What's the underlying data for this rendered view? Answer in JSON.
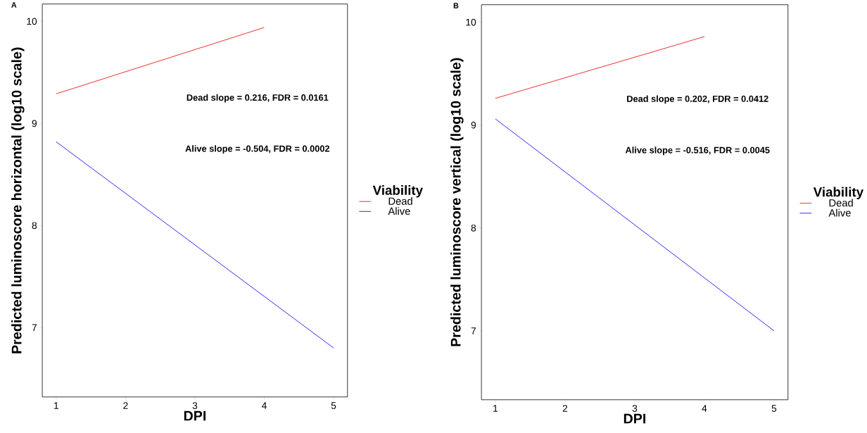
{
  "chart_data": [
    {
      "type": "line",
      "title": "A",
      "xlabel": "DPI",
      "ylabel": "Predicted luminoscore horizontal (log10 scale)",
      "legend_title": "Viability",
      "legend": "right",
      "line_style": "solid",
      "marker": "none",
      "xlim": [
        0.8,
        5.2
      ],
      "ylim": [
        6.32,
        10.17
      ],
      "xticks": [
        1,
        2,
        3,
        4,
        5
      ],
      "yticks": [
        7,
        8,
        9,
        10
      ],
      "series": [
        {
          "name": "Dead",
          "color": "#ee2c2c",
          "x": [
            1,
            4
          ],
          "values": [
            9.29,
            9.94
          ]
        },
        {
          "name": "Alive",
          "color": "#2c2cee",
          "x": [
            1,
            5
          ],
          "values": [
            8.82,
            6.8
          ]
        }
      ],
      "annotations": [
        "Dead slope = 0.216, FDR = 0.0161",
        "Alive slope = -0.504, FDR = 0.0002"
      ]
    },
    {
      "type": "line",
      "title": "B",
      "xlabel": "DPI",
      "ylabel": "Predicted luminoscore vertical (log10 scale)",
      "legend_title": "Viability",
      "legend": "right",
      "line_style": "solid",
      "marker": "none",
      "xlim": [
        0.8,
        5.2
      ],
      "ylim": [
        6.33,
        10.17
      ],
      "xticks": [
        1,
        2,
        3,
        4,
        5
      ],
      "yticks": [
        7,
        8,
        9,
        10
      ],
      "series": [
        {
          "name": "Dead",
          "color": "#ee2c2c",
          "x": [
            1,
            4
          ],
          "values": [
            9.26,
            9.86
          ]
        },
        {
          "name": "Alive",
          "color": "#2c2cee",
          "x": [
            1,
            5
          ],
          "values": [
            9.06,
            7.0
          ]
        }
      ],
      "annotations": [
        "Dead slope = 0.202, FDR = 0.0412",
        "Alive slope = -0.516, FDR = 0.0045"
      ]
    }
  ]
}
